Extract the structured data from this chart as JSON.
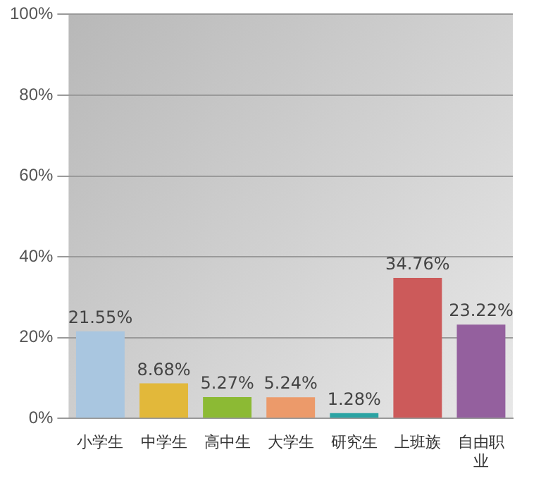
{
  "chart_data": {
    "type": "bar",
    "categories": [
      "小学生",
      "中学生",
      "高中生",
      "大学生",
      "研究生",
      "上班族",
      "自由职业"
    ],
    "values": [
      21.55,
      8.68,
      5.27,
      5.24,
      1.28,
      34.76,
      23.22
    ],
    "value_labels": [
      "21.55%",
      "8.68%",
      "5.27%",
      "5.24%",
      "1.28%",
      "34.76%",
      "23.22%"
    ],
    "colors": [
      "#a9c6e0",
      "#e2b83a",
      "#8cba34",
      "#ec9a6a",
      "#2aa3a3",
      "#cc5a5a",
      "#94609e"
    ],
    "ylim": [
      0,
      100
    ],
    "yticks": [
      {
        "value": 0,
        "label": "0%"
      },
      {
        "value": 20,
        "label": "20%"
      },
      {
        "value": 40,
        "label": "40%"
      },
      {
        "value": 60,
        "label": "60%"
      },
      {
        "value": 80,
        "label": "80%"
      },
      {
        "value": 100,
        "label": "100%"
      }
    ],
    "grid": "y"
  }
}
